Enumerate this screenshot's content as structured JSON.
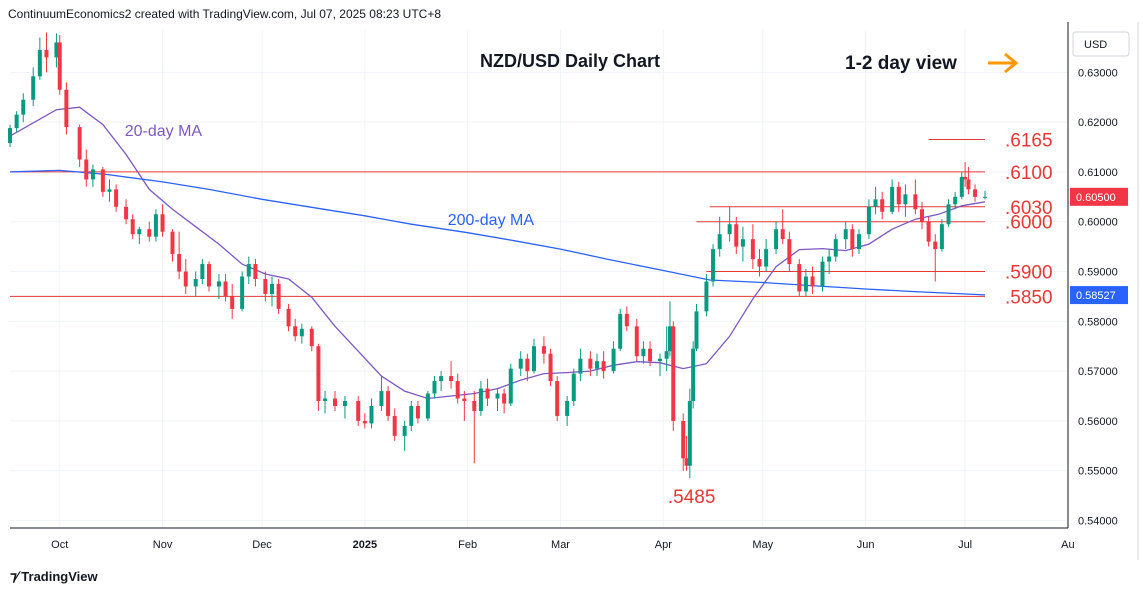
{
  "header": {
    "credit": "ContinuumEconomics2 created with TradingView.com, Jul 07, 2025 08:23 UTC+8"
  },
  "footer": {
    "logo_text": "TradingView"
  },
  "colors": {
    "up": "#089981",
    "down": "#f23645",
    "ma20": "#7e57c2",
    "ma200": "#2962ff",
    "level_line": "#e53935",
    "level_text": "#e53935",
    "arrow": "#ff9800",
    "price_tag": "#f23645",
    "ma200_tag": "#2962ff"
  },
  "chart_data": {
    "type": "candlestick",
    "title": "NZD/USD Daily Chart",
    "view_label": "1-2 day view",
    "view_icon": "arrow-right-icon",
    "currency": "USD",
    "x_labels": [
      "Oct",
      "Nov",
      "Dec",
      "2025",
      "Feb",
      "Mar",
      "Apr",
      "May",
      "Jun",
      "Jul",
      "Au"
    ],
    "y_ticks": [
      0.63,
      0.62,
      0.61,
      0.6,
      0.59,
      0.58,
      0.57,
      0.56,
      0.55,
      0.54
    ],
    "y_tick_labels": [
      "0.63000",
      "0.62000",
      "0.61000",
      "0.60000",
      "0.59000",
      "0.58000",
      "0.57000",
      "0.56000",
      "0.55000",
      "0.54000"
    ],
    "ylim": [
      0.5385,
      0.6385
    ],
    "price_tags": [
      {
        "label": "0.60500",
        "value": 0.605,
        "kind": "price"
      },
      {
        "label": "0.58527",
        "value": 0.58527,
        "kind": "ma200"
      }
    ],
    "levels": [
      {
        "label": ".6165",
        "value": 0.6165,
        "from_date": "2025-06-20"
      },
      {
        "label": ".6100",
        "value": 0.61,
        "from_date": "2024-09-16"
      },
      {
        "label": ".6030",
        "value": 0.603,
        "from_date": "2025-04-15"
      },
      {
        "label": ".6000",
        "value": 0.6,
        "from_date": "2025-04-11"
      },
      {
        "label": ".5900",
        "value": 0.59,
        "from_date": "2025-04-14"
      },
      {
        "label": ".5850",
        "value": 0.585,
        "from_date": "2024-09-16"
      }
    ],
    "annotations": [
      {
        "text": ".5485",
        "date": "2025-04-09",
        "value": 0.5485
      },
      {
        "text": "20-day MA",
        "date": "2024-10-23",
        "value": 0.6185
      },
      {
        "text": "200-day MA",
        "date": "2025-01-26",
        "value": 0.6005
      }
    ],
    "series": [
      {
        "name": "20-day MA",
        "type": "line",
        "points": [
          [
            "2024-09-16",
            0.6172
          ],
          [
            "2024-09-30",
            0.6225
          ],
          [
            "2024-10-07",
            0.623
          ],
          [
            "2024-10-14",
            0.6195
          ],
          [
            "2024-10-21",
            0.6135
          ],
          [
            "2024-10-28",
            0.6065
          ],
          [
            "2024-11-04",
            0.6025
          ],
          [
            "2024-11-11",
            0.599
          ],
          [
            "2024-11-18",
            0.5955
          ],
          [
            "2024-11-25",
            0.5915
          ],
          [
            "2024-12-02",
            0.5895
          ],
          [
            "2024-12-09",
            0.5885
          ],
          [
            "2024-12-16",
            0.5848
          ],
          [
            "2024-12-23",
            0.579
          ],
          [
            "2024-12-30",
            0.574
          ],
          [
            "2025-01-06",
            0.569
          ],
          [
            "2025-01-13",
            0.566
          ],
          [
            "2025-01-20",
            0.5645
          ],
          [
            "2025-01-27",
            0.565
          ],
          [
            "2025-02-03",
            0.5655
          ],
          [
            "2025-02-10",
            0.5665
          ],
          [
            "2025-02-17",
            0.5682
          ],
          [
            "2025-02-24",
            0.5695
          ],
          [
            "2025-03-03",
            0.5697
          ],
          [
            "2025-03-10",
            0.57
          ],
          [
            "2025-03-17",
            0.5712
          ],
          [
            "2025-03-24",
            0.5719
          ],
          [
            "2025-03-31",
            0.5717
          ],
          [
            "2025-04-07",
            0.5705
          ],
          [
            "2025-04-14",
            0.5715
          ],
          [
            "2025-04-21",
            0.577
          ],
          [
            "2025-04-28",
            0.5845
          ],
          [
            "2025-05-05",
            0.591
          ],
          [
            "2025-05-12",
            0.5944
          ],
          [
            "2025-05-19",
            0.5946
          ],
          [
            "2025-05-26",
            0.5942
          ],
          [
            "2025-06-02",
            0.5955
          ],
          [
            "2025-06-09",
            0.5985
          ],
          [
            "2025-06-16",
            0.6005
          ],
          [
            "2025-06-23",
            0.6015
          ],
          [
            "2025-06-30",
            0.6032
          ],
          [
            "2025-07-07",
            0.604
          ]
        ]
      },
      {
        "name": "200-day MA",
        "type": "line",
        "points": [
          [
            "2024-09-16",
            0.61
          ],
          [
            "2024-10-01",
            0.6103
          ],
          [
            "2024-10-15",
            0.6095
          ],
          [
            "2024-11-01",
            0.608
          ],
          [
            "2024-11-15",
            0.6065
          ],
          [
            "2024-12-01",
            0.6045
          ],
          [
            "2024-12-15",
            0.603
          ],
          [
            "2025-01-01",
            0.6012
          ],
          [
            "2025-01-15",
            0.5995
          ],
          [
            "2025-02-01",
            0.5978
          ],
          [
            "2025-02-15",
            0.5962
          ],
          [
            "2025-03-01",
            0.5945
          ],
          [
            "2025-03-15",
            0.5925
          ],
          [
            "2025-04-01",
            0.5902
          ],
          [
            "2025-04-15",
            0.5883
          ],
          [
            "2025-05-01",
            0.5878
          ],
          [
            "2025-05-15",
            0.5872
          ],
          [
            "2025-06-01",
            0.5865
          ],
          [
            "2025-06-15",
            0.586
          ],
          [
            "2025-07-07",
            0.5853
          ]
        ]
      }
    ],
    "candles": [
      [
        "2024-09-16",
        0.6158,
        0.6195,
        0.615,
        0.6188
      ],
      [
        "2024-09-18",
        0.6188,
        0.6222,
        0.618,
        0.6215
      ],
      [
        "2024-09-20",
        0.6215,
        0.6258,
        0.62,
        0.6245
      ],
      [
        "2024-09-23",
        0.6245,
        0.631,
        0.6232,
        0.6292
      ],
      [
        "2024-09-25",
        0.6292,
        0.637,
        0.6285,
        0.6345
      ],
      [
        "2024-09-27",
        0.6345,
        0.638,
        0.63,
        0.633
      ],
      [
        "2024-09-30",
        0.633,
        0.6378,
        0.631,
        0.636
      ],
      [
        "2024-10-01",
        0.636,
        0.6375,
        0.6255,
        0.6265
      ],
      [
        "2024-10-03",
        0.6265,
        0.628,
        0.6175,
        0.619
      ],
      [
        "2024-10-07",
        0.619,
        0.6195,
        0.611,
        0.6125
      ],
      [
        "2024-10-09",
        0.6125,
        0.6145,
        0.607,
        0.6085
      ],
      [
        "2024-10-11",
        0.6085,
        0.6115,
        0.607,
        0.6105
      ],
      [
        "2024-10-14",
        0.6105,
        0.611,
        0.605,
        0.606
      ],
      [
        "2024-10-16",
        0.606,
        0.6085,
        0.604,
        0.6065
      ],
      [
        "2024-10-18",
        0.6065,
        0.6075,
        0.602,
        0.603
      ],
      [
        "2024-10-21",
        0.603,
        0.6045,
        0.5995,
        0.6005
      ],
      [
        "2024-10-23",
        0.6005,
        0.6015,
        0.5965,
        0.5975
      ],
      [
        "2024-10-25",
        0.5975,
        0.599,
        0.5955,
        0.5985
      ],
      [
        "2024-10-28",
        0.5985,
        0.6,
        0.596,
        0.597
      ],
      [
        "2024-10-30",
        0.597,
        0.6025,
        0.596,
        0.6015
      ],
      [
        "2024-11-01",
        0.6015,
        0.6035,
        0.597,
        0.598
      ],
      [
        "2024-11-04",
        0.598,
        0.5985,
        0.592,
        0.5935
      ],
      [
        "2024-11-06",
        0.5935,
        0.598,
        0.5885,
        0.59
      ],
      [
        "2024-11-08",
        0.59,
        0.5925,
        0.5855,
        0.587
      ],
      [
        "2024-11-11",
        0.587,
        0.59,
        0.585,
        0.5885
      ],
      [
        "2024-11-13",
        0.5885,
        0.5925,
        0.5875,
        0.5915
      ],
      [
        "2024-11-15",
        0.5915,
        0.592,
        0.586,
        0.587
      ],
      [
        "2024-11-18",
        0.587,
        0.5895,
        0.5845,
        0.588
      ],
      [
        "2024-11-20",
        0.588,
        0.5895,
        0.584,
        0.585
      ],
      [
        "2024-11-22",
        0.585,
        0.5875,
        0.5805,
        0.5825
      ],
      [
        "2024-11-25",
        0.5825,
        0.59,
        0.582,
        0.589
      ],
      [
        "2024-11-27",
        0.589,
        0.593,
        0.5875,
        0.5915
      ],
      [
        "2024-11-29",
        0.5915,
        0.5925,
        0.587,
        0.5885
      ],
      [
        "2024-12-02",
        0.5885,
        0.59,
        0.584,
        0.5855
      ],
      [
        "2024-12-04",
        0.5855,
        0.589,
        0.583,
        0.5875
      ],
      [
        "2024-12-06",
        0.5875,
        0.5885,
        0.5815,
        0.5825
      ],
      [
        "2024-12-09",
        0.5825,
        0.5835,
        0.578,
        0.579
      ],
      [
        "2024-12-11",
        0.579,
        0.5805,
        0.576,
        0.577
      ],
      [
        "2024-12-13",
        0.577,
        0.5795,
        0.5755,
        0.5785
      ],
      [
        "2024-12-16",
        0.5785,
        0.579,
        0.574,
        0.575
      ],
      [
        "2024-12-18",
        0.575,
        0.5755,
        0.562,
        0.564
      ],
      [
        "2024-12-20",
        0.564,
        0.566,
        0.5615,
        0.5645
      ],
      [
        "2024-12-23",
        0.5645,
        0.566,
        0.562,
        0.563
      ],
      [
        "2024-12-26",
        0.563,
        0.565,
        0.5605,
        0.564
      ],
      [
        "2024-12-30",
        0.564,
        0.565,
        0.559,
        0.56
      ],
      [
        "2025-01-01",
        0.56,
        0.5615,
        0.5585,
        0.5595
      ],
      [
        "2025-01-03",
        0.5595,
        0.5645,
        0.5585,
        0.563
      ],
      [
        "2025-01-06",
        0.563,
        0.569,
        0.562,
        0.566
      ],
      [
        "2025-01-08",
        0.566,
        0.567,
        0.56,
        0.561
      ],
      [
        "2025-01-10",
        0.561,
        0.5625,
        0.556,
        0.557
      ],
      [
        "2025-01-13",
        0.557,
        0.56,
        0.554,
        0.559
      ],
      [
        "2025-01-15",
        0.559,
        0.564,
        0.558,
        0.563
      ],
      [
        "2025-01-17",
        0.563,
        0.564,
        0.5595,
        0.5605
      ],
      [
        "2025-01-20",
        0.5605,
        0.566,
        0.56,
        0.5655
      ],
      [
        "2025-01-22",
        0.5655,
        0.569,
        0.5645,
        0.568
      ],
      [
        "2025-01-24",
        0.568,
        0.57,
        0.566,
        0.569
      ],
      [
        "2025-01-27",
        0.569,
        0.572,
        0.5665,
        0.568
      ],
      [
        "2025-01-29",
        0.568,
        0.5695,
        0.5635,
        0.5645
      ],
      [
        "2025-01-31",
        0.5645,
        0.566,
        0.56,
        0.564
      ],
      [
        "2025-02-03",
        0.564,
        0.566,
        0.5515,
        0.562
      ],
      [
        "2025-02-05",
        0.562,
        0.568,
        0.561,
        0.5665
      ],
      [
        "2025-02-07",
        0.5665,
        0.5685,
        0.563,
        0.5645
      ],
      [
        "2025-02-10",
        0.5645,
        0.5665,
        0.562,
        0.5655
      ],
      [
        "2025-02-12",
        0.5655,
        0.5665,
        0.5615,
        0.5635
      ],
      [
        "2025-02-14",
        0.5635,
        0.5715,
        0.563,
        0.5705
      ],
      [
        "2025-02-17",
        0.5705,
        0.574,
        0.569,
        0.5725
      ],
      [
        "2025-02-19",
        0.5725,
        0.5735,
        0.568,
        0.57
      ],
      [
        "2025-02-21",
        0.57,
        0.5765,
        0.5695,
        0.575
      ],
      [
        "2025-02-24",
        0.575,
        0.577,
        0.5715,
        0.5735
      ],
      [
        "2025-02-26",
        0.5735,
        0.5745,
        0.567,
        0.568
      ],
      [
        "2025-02-28",
        0.568,
        0.569,
        0.56,
        0.561
      ],
      [
        "2025-03-03",
        0.561,
        0.565,
        0.559,
        0.564
      ],
      [
        "2025-03-05",
        0.564,
        0.5705,
        0.563,
        0.5695
      ],
      [
        "2025-03-07",
        0.5695,
        0.5745,
        0.568,
        0.5725
      ],
      [
        "2025-03-10",
        0.5725,
        0.574,
        0.569,
        0.5705
      ],
      [
        "2025-03-12",
        0.5705,
        0.5735,
        0.569,
        0.572
      ],
      [
        "2025-03-14",
        0.572,
        0.574,
        0.5685,
        0.57
      ],
      [
        "2025-03-17",
        0.57,
        0.576,
        0.5695,
        0.5745
      ],
      [
        "2025-03-19",
        0.5745,
        0.5825,
        0.574,
        0.5815
      ],
      [
        "2025-03-21",
        0.5815,
        0.583,
        0.578,
        0.579
      ],
      [
        "2025-03-24",
        0.579,
        0.5805,
        0.572,
        0.573
      ],
      [
        "2025-03-26",
        0.573,
        0.576,
        0.5715,
        0.5745
      ],
      [
        "2025-03-28",
        0.5745,
        0.576,
        0.571,
        0.572
      ],
      [
        "2025-03-31",
        0.572,
        0.5735,
        0.569,
        0.5725
      ],
      [
        "2025-04-02",
        0.5725,
        0.579,
        0.57,
        0.574
      ],
      [
        "2025-04-03",
        0.574,
        0.584,
        0.573,
        0.579
      ],
      [
        "2025-04-04",
        0.579,
        0.58,
        0.558,
        0.56
      ],
      [
        "2025-04-07",
        0.56,
        0.5615,
        0.55,
        0.5525
      ],
      [
        "2025-04-08",
        0.5525,
        0.557,
        0.55,
        0.551
      ],
      [
        "2025-04-09",
        0.551,
        0.5665,
        0.5485,
        0.564
      ],
      [
        "2025-04-10",
        0.564,
        0.576,
        0.5625,
        0.5745
      ],
      [
        "2025-04-11",
        0.5745,
        0.5835,
        0.574,
        0.582
      ],
      [
        "2025-04-14",
        0.582,
        0.5895,
        0.581,
        0.588
      ],
      [
        "2025-04-16",
        0.588,
        0.5955,
        0.587,
        0.5945
      ],
      [
        "2025-04-18",
        0.5945,
        0.601,
        0.593,
        0.5975
      ],
      [
        "2025-04-21",
        0.5975,
        0.603,
        0.596,
        0.5995
      ],
      [
        "2025-04-23",
        0.5995,
        0.601,
        0.5935,
        0.595
      ],
      [
        "2025-04-25",
        0.595,
        0.599,
        0.592,
        0.5965
      ],
      [
        "2025-04-28",
        0.5965,
        0.5995,
        0.5905,
        0.5925
      ],
      [
        "2025-04-30",
        0.5925,
        0.5945,
        0.589,
        0.591
      ],
      [
        "2025-05-02",
        0.591,
        0.5965,
        0.59,
        0.5945
      ],
      [
        "2025-05-05",
        0.5945,
        0.6,
        0.5935,
        0.5985
      ],
      [
        "2025-05-07",
        0.5985,
        0.6025,
        0.5955,
        0.5965
      ],
      [
        "2025-05-09",
        0.5965,
        0.598,
        0.59,
        0.5915
      ],
      [
        "2025-05-12",
        0.5915,
        0.5925,
        0.585,
        0.586
      ],
      [
        "2025-05-14",
        0.586,
        0.5905,
        0.585,
        0.589
      ],
      [
        "2025-05-16",
        0.589,
        0.591,
        0.5855,
        0.587
      ],
      [
        "2025-05-19",
        0.587,
        0.593,
        0.586,
        0.592
      ],
      [
        "2025-05-21",
        0.592,
        0.5945,
        0.5895,
        0.593
      ],
      [
        "2025-05-23",
        0.593,
        0.5975,
        0.592,
        0.5965
      ],
      [
        "2025-05-26",
        0.5965,
        0.6,
        0.5945,
        0.5985
      ],
      [
        "2025-05-28",
        0.5985,
        0.5995,
        0.593,
        0.5945
      ],
      [
        "2025-05-30",
        0.5945,
        0.5985,
        0.5935,
        0.5975
      ],
      [
        "2025-06-02",
        0.5975,
        0.6045,
        0.5965,
        0.603
      ],
      [
        "2025-06-04",
        0.603,
        0.607,
        0.6015,
        0.6045
      ],
      [
        "2025-06-06",
        0.6045,
        0.606,
        0.6005,
        0.602
      ],
      [
        "2025-06-09",
        0.602,
        0.6085,
        0.6015,
        0.607
      ],
      [
        "2025-06-11",
        0.607,
        0.608,
        0.602,
        0.6035
      ],
      [
        "2025-06-13",
        0.6035,
        0.6075,
        0.601,
        0.6055
      ],
      [
        "2025-06-16",
        0.6055,
        0.6085,
        0.6015,
        0.6025
      ],
      [
        "2025-06-18",
        0.6025,
        0.604,
        0.5985,
        0.6
      ],
      [
        "2025-06-20",
        0.6,
        0.601,
        0.595,
        0.596
      ],
      [
        "2025-06-22",
        0.596,
        0.5975,
        0.588,
        0.5945
      ],
      [
        "2025-06-24",
        0.5945,
        0.6005,
        0.594,
        0.5995
      ],
      [
        "2025-06-26",
        0.5995,
        0.6045,
        0.599,
        0.6035
      ],
      [
        "2025-06-28",
        0.6035,
        0.606,
        0.6025,
        0.605
      ],
      [
        "2025-06-30",
        0.605,
        0.61,
        0.6045,
        0.609
      ],
      [
        "2025-07-01",
        0.609,
        0.612,
        0.607,
        0.6085
      ],
      [
        "2025-07-02",
        0.6085,
        0.611,
        0.6055,
        0.6065
      ],
      [
        "2025-07-04",
        0.6065,
        0.6075,
        0.604,
        0.605
      ],
      [
        "2025-07-07",
        0.605,
        0.6062,
        0.6045,
        0.605
      ]
    ]
  }
}
